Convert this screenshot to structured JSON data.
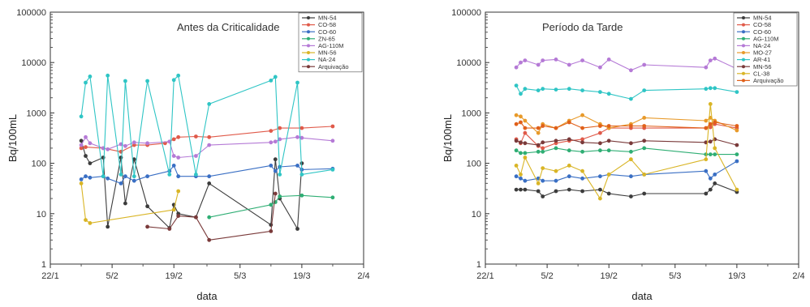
{
  "chart_data": [
    {
      "type": "line",
      "title": "Antes da Criticalidade",
      "xlabel": "data",
      "ylabel": "Bq/100mL",
      "y_scale": "log",
      "ylim": [
        1,
        100000
      ],
      "xlim": [
        "2020-01-22",
        "2020-04-02"
      ],
      "x_ticks": [
        "22/1",
        "5/2",
        "19/2",
        "5/3",
        "19/3",
        "2/4"
      ],
      "y_ticks": [
        "1",
        "10",
        "100",
        "1000",
        "10000",
        "100000"
      ],
      "grid": false,
      "legend_position": "top-right",
      "series": [
        {
          "name": "MN-54",
          "color": "#3c3c3c",
          "x": [
            "2020-01-29",
            "2020-01-30",
            "2020-01-31",
            "2020-02-03",
            "2020-02-04",
            "2020-02-07",
            "2020-02-08",
            "2020-02-10",
            "2020-02-13",
            "2020-02-18",
            "2020-02-19",
            "2020-02-20",
            "2020-02-24",
            "2020-02-27",
            "2020-03-12",
            "2020-03-13",
            "2020-03-14",
            "2020-03-18",
            "2020-03-19"
          ],
          "y": [
            280,
            140,
            100,
            130,
            5.5,
            130,
            16,
            120,
            14,
            5.2,
            15,
            10,
            8.5,
            40,
            6,
            120,
            20,
            5,
            100
          ]
        },
        {
          "name": "CO-58",
          "color": "#e05a4a",
          "x": [
            "2020-01-29",
            "2020-01-30",
            "2020-02-03",
            "2020-02-07",
            "2020-02-10",
            "2020-02-13",
            "2020-02-17",
            "2020-02-19",
            "2020-02-20",
            "2020-02-24",
            "2020-02-27",
            "2020-03-12",
            "2020-03-14",
            "2020-03-19",
            "2020-03-26"
          ],
          "y": [
            200,
            210,
            200,
            170,
            230,
            230,
            250,
            300,
            330,
            340,
            330,
            440,
            500,
            500,
            540
          ]
        },
        {
          "name": "CO-60",
          "color": "#3a6fc4",
          "x": [
            "2020-01-29",
            "2020-01-30",
            "2020-01-31",
            "2020-02-03",
            "2020-02-04",
            "2020-02-07",
            "2020-02-08",
            "2020-02-10",
            "2020-02-13",
            "2020-02-18",
            "2020-02-19",
            "2020-02-20",
            "2020-02-24",
            "2020-02-27",
            "2020-03-12",
            "2020-03-13",
            "2020-03-14",
            "2020-03-18",
            "2020-03-19",
            "2020-03-26"
          ],
          "y": [
            48,
            55,
            52,
            55,
            50,
            40,
            55,
            45,
            55,
            70,
            90,
            55,
            55,
            55,
            90,
            70,
            85,
            90,
            75,
            78
          ]
        },
        {
          "name": "ZN-65",
          "color": "#2fae74",
          "x": [
            "2020-02-27",
            "2020-03-12",
            "2020-03-13",
            "2020-03-14",
            "2020-03-19",
            "2020-03-26"
          ],
          "y": [
            8.5,
            15,
            17,
            22,
            23,
            21
          ]
        },
        {
          "name": "AG-110M",
          "color": "#b57ad6",
          "x": [
            "2020-01-29",
            "2020-01-30",
            "2020-01-31",
            "2020-02-03",
            "2020-02-04",
            "2020-02-07",
            "2020-02-08",
            "2020-02-10",
            "2020-02-13",
            "2020-02-18",
            "2020-02-19",
            "2020-02-20",
            "2020-02-24",
            "2020-02-27",
            "2020-03-12",
            "2020-03-13",
            "2020-03-14",
            "2020-03-18",
            "2020-03-19",
            "2020-03-26"
          ],
          "y": [
            230,
            330,
            250,
            200,
            190,
            240,
            220,
            260,
            250,
            270,
            140,
            130,
            140,
            230,
            260,
            270,
            300,
            330,
            320,
            280
          ]
        },
        {
          "name": "MN-56",
          "color": "#d9b526",
          "x": [
            "2020-01-29",
            "2020-01-30",
            "2020-01-31",
            "2020-02-19",
            "2020-02-20"
          ],
          "y": [
            40,
            7.5,
            6.5,
            12,
            28
          ]
        },
        {
          "name": "NA-24",
          "color": "#2fc5c5",
          "x": [
            "2020-01-29",
            "2020-01-30",
            "2020-01-31",
            "2020-02-03",
            "2020-02-04",
            "2020-02-07",
            "2020-02-08",
            "2020-02-10",
            "2020-02-13",
            "2020-02-18",
            "2020-02-19",
            "2020-02-20",
            "2020-02-24",
            "2020-02-27",
            "2020-03-12",
            "2020-03-13",
            "2020-03-14",
            "2020-03-18",
            "2020-03-19",
            "2020-03-26"
          ],
          "y": [
            850,
            4000,
            5300,
            55,
            5500,
            60,
            4300,
            55,
            4300,
            60,
            4500,
            5500,
            60,
            1500,
            4400,
            5200,
            60,
            4000,
            60,
            75
          ]
        },
        {
          "name": "Arquivação",
          "color": "#7a3a3a",
          "x": [
            "2020-02-13",
            "2020-02-18",
            "2020-02-20",
            "2020-02-24",
            "2020-02-27",
            "2020-03-12",
            "2020-03-13"
          ],
          "y": [
            5.5,
            5,
            9,
            8.5,
            3,
            4.5,
            25
          ]
        }
      ]
    },
    {
      "type": "line",
      "title": "Período da Tarde",
      "xlabel": "data",
      "ylabel": "Bq/100mL",
      "y_scale": "log",
      "ylim": [
        1,
        100000
      ],
      "xlim": [
        "2020-01-22",
        "2020-04-02"
      ],
      "x_ticks": [
        "22/1",
        "5/2",
        "19/2",
        "5/3",
        "19/3",
        "2/4"
      ],
      "y_ticks": [
        "1",
        "10",
        "100",
        "1000",
        "10000",
        "100000"
      ],
      "grid": false,
      "legend_position": "top-right",
      "series": [
        {
          "name": "MN-54",
          "color": "#3c3c3c",
          "x": [
            "2020-01-29",
            "2020-01-30",
            "2020-01-31",
            "2020-02-03",
            "2020-02-04",
            "2020-02-07",
            "2020-02-10",
            "2020-02-13",
            "2020-02-17",
            "2020-02-19",
            "2020-02-24",
            "2020-02-27",
            "2020-03-12",
            "2020-03-13",
            "2020-03-14",
            "2020-03-19"
          ],
          "y": [
            30,
            30,
            30,
            28,
            22,
            28,
            30,
            28,
            30,
            25,
            22,
            25,
            25,
            30,
            40,
            27
          ]
        },
        {
          "name": "CO-58",
          "color": "#e05a4a",
          "x": [
            "2020-01-29",
            "2020-01-30",
            "2020-01-31",
            "2020-02-03",
            "2020-02-04",
            "2020-02-07",
            "2020-02-10",
            "2020-02-13",
            "2020-02-17",
            "2020-02-19",
            "2020-02-24",
            "2020-02-27",
            "2020-03-12",
            "2020-03-13",
            "2020-03-14",
            "2020-03-19"
          ],
          "y": [
            300,
            250,
            400,
            220,
            200,
            250,
            280,
            300,
            400,
            500,
            500,
            500,
            500,
            520,
            600,
            500
          ]
        },
        {
          "name": "CO-60",
          "color": "#3a6fc4",
          "x": [
            "2020-01-29",
            "2020-01-30",
            "2020-01-31",
            "2020-02-03",
            "2020-02-04",
            "2020-02-07",
            "2020-02-10",
            "2020-02-13",
            "2020-02-17",
            "2020-02-19",
            "2020-02-24",
            "2020-02-27",
            "2020-03-12",
            "2020-03-13",
            "2020-03-14",
            "2020-03-19"
          ],
          "y": [
            55,
            50,
            45,
            50,
            45,
            45,
            55,
            50,
            55,
            60,
            55,
            60,
            70,
            50,
            60,
            110
          ]
        },
        {
          "name": "AG-110M",
          "color": "#2fae74",
          "x": [
            "2020-01-29",
            "2020-01-30",
            "2020-01-31",
            "2020-02-03",
            "2020-02-04",
            "2020-02-07",
            "2020-02-10",
            "2020-02-13",
            "2020-02-17",
            "2020-02-19",
            "2020-02-24",
            "2020-02-27",
            "2020-03-12",
            "2020-03-13",
            "2020-03-14",
            "2020-03-19"
          ],
          "y": [
            180,
            160,
            160,
            170,
            170,
            200,
            180,
            170,
            180,
            180,
            170,
            200,
            150,
            150,
            150,
            150
          ]
        },
        {
          "name": "NA-24",
          "color": "#b57ad6",
          "x": [
            "2020-01-29",
            "2020-01-30",
            "2020-01-31",
            "2020-02-03",
            "2020-02-04",
            "2020-02-07",
            "2020-02-10",
            "2020-02-13",
            "2020-02-17",
            "2020-02-19",
            "2020-02-24",
            "2020-02-27",
            "2020-03-12",
            "2020-03-13",
            "2020-03-14",
            "2020-03-19"
          ],
          "y": [
            8000,
            10000,
            11000,
            9000,
            11000,
            11500,
            9000,
            11000,
            8000,
            11500,
            7000,
            9000,
            8000,
            11000,
            12000,
            7500
          ]
        },
        {
          "name": "MO-27",
          "color": "#e89a2a",
          "x": [
            "2020-01-29",
            "2020-01-30",
            "2020-01-31",
            "2020-02-03",
            "2020-02-04",
            "2020-02-07",
            "2020-02-10",
            "2020-02-13",
            "2020-02-17",
            "2020-02-19",
            "2020-02-24",
            "2020-02-27",
            "2020-03-12",
            "2020-03-13",
            "2020-03-14",
            "2020-03-19"
          ],
          "y": [
            900,
            850,
            700,
            400,
            600,
            500,
            700,
            900,
            600,
            500,
            600,
            800,
            700,
            800,
            700,
            450
          ]
        },
        {
          "name": "AR-41",
          "color": "#2fc5c5",
          "x": [
            "2020-01-29",
            "2020-01-30",
            "2020-01-31",
            "2020-02-03",
            "2020-02-04",
            "2020-02-07",
            "2020-02-10",
            "2020-02-13",
            "2020-02-17",
            "2020-02-19",
            "2020-02-24",
            "2020-02-27",
            "2020-03-12",
            "2020-03-13",
            "2020-03-14",
            "2020-03-19"
          ],
          "y": [
            3500,
            2400,
            3000,
            2800,
            3000,
            2900,
            3000,
            2800,
            2600,
            2400,
            1900,
            2800,
            3000,
            3100,
            3100,
            2600
          ]
        },
        {
          "name": "MN-56",
          "color": "#7a3a3a",
          "x": [
            "2020-01-29",
            "2020-01-30",
            "2020-01-31",
            "2020-02-03",
            "2020-02-04",
            "2020-02-07",
            "2020-02-10",
            "2020-02-13",
            "2020-02-17",
            "2020-02-19",
            "2020-02-24",
            "2020-02-27",
            "2020-03-12",
            "2020-03-13",
            "2020-03-14",
            "2020-03-19"
          ],
          "y": [
            280,
            260,
            250,
            230,
            260,
            280,
            300,
            260,
            250,
            280,
            250,
            280,
            260,
            270,
            300,
            230
          ]
        },
        {
          "name": "CL-38",
          "color": "#d9b526",
          "x": [
            "2020-01-29",
            "2020-01-30",
            "2020-01-31",
            "2020-02-03",
            "2020-02-04",
            "2020-02-07",
            "2020-02-10",
            "2020-02-13",
            "2020-02-17",
            "2020-02-19",
            "2020-02-24",
            "2020-02-27",
            "2020-03-12",
            "2020-03-13",
            "2020-03-14",
            "2020-03-19"
          ],
          "y": [
            90,
            60,
            130,
            40,
            80,
            70,
            90,
            70,
            20,
            60,
            120,
            60,
            120,
            1500,
            200,
            30
          ]
        },
        {
          "name": "Arquivação",
          "color": "#e0601a",
          "x": [
            "2020-01-29",
            "2020-01-30",
            "2020-01-31",
            "2020-02-03",
            "2020-02-04",
            "2020-02-07",
            "2020-02-10",
            "2020-02-13",
            "2020-02-17",
            "2020-02-19",
            "2020-02-24",
            "2020-02-27",
            "2020-03-12",
            "2020-03-13",
            "2020-03-14",
            "2020-03-19"
          ],
          "y": [
            600,
            650,
            500,
            500,
            550,
            500,
            650,
            500,
            550,
            550,
            550,
            550,
            500,
            600,
            650,
            550
          ]
        }
      ]
    }
  ]
}
